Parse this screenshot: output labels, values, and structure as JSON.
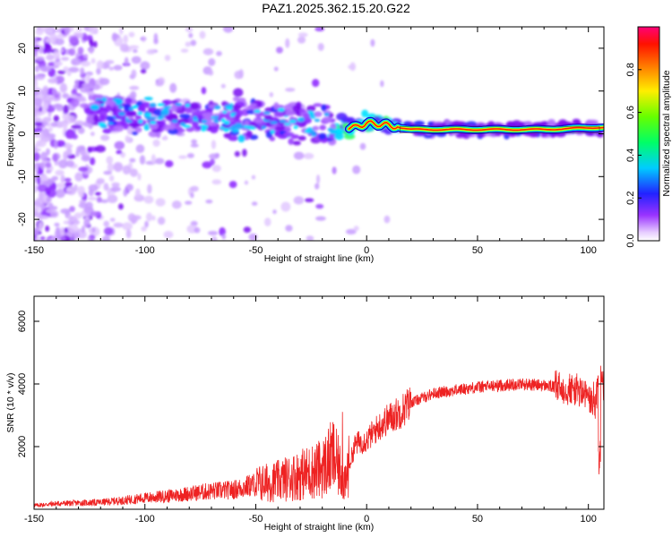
{
  "title": "PAZ1.2025.362.15.20.G22",
  "chart_data": [
    {
      "type": "heatmap",
      "name": "spectrogram",
      "xlabel": "Height of straight line (km)",
      "ylabel": "Frequency (Hz)",
      "xlim": [
        -150,
        107
      ],
      "ylim": [
        -25,
        25
      ],
      "xticks": [
        -150,
        -100,
        -50,
        0,
        50,
        100
      ],
      "yticks": [
        -20,
        -10,
        0,
        10,
        20
      ],
      "colorbar": {
        "label": "Normalized spectral amplitude",
        "range": [
          0,
          1
        ],
        "ticks": [
          0.0,
          0.2,
          0.4,
          0.6,
          0.8
        ],
        "tick_labels": [
          "0.0",
          "0.2",
          "0.4",
          "0.6",
          "0.8"
        ],
        "colors": [
          "#ffffff",
          "#d9b3ff",
          "#7f00ff",
          "#0000ff",
          "#00ffff",
          "#00ff00",
          "#ffff00",
          "#ff8000",
          "#ff0000",
          "#ff0080"
        ]
      },
      "ridge": [
        {
          "height_km": -120,
          "freq_hz": 4.5
        },
        {
          "height_km": -100,
          "freq_hz": 4.0
        },
        {
          "height_km": -80,
          "freq_hz": 4.0
        },
        {
          "height_km": -60,
          "freq_hz": 3.5
        },
        {
          "height_km": -40,
          "freq_hz": 3.0
        },
        {
          "height_km": -20,
          "freq_hz": 2.0
        },
        {
          "height_km": -5,
          "freq_hz": 1.5
        },
        {
          "height_km": 0,
          "freq_hz": 2.5
        },
        {
          "height_km": 10,
          "freq_hz": 2.0
        },
        {
          "height_km": 20,
          "freq_hz": 1.0
        },
        {
          "height_km": 50,
          "freq_hz": 1.0
        },
        {
          "height_km": 80,
          "freq_hz": 1.0
        },
        {
          "height_km": 105,
          "freq_hz": 1.5
        }
      ]
    },
    {
      "type": "line",
      "name": "snr",
      "xlabel": "Height of straight line (km)",
      "ylabel": "SNR (10 * v/v)",
      "xlim": [
        -150,
        107
      ],
      "ylim": [
        0,
        6800
      ],
      "xticks": [
        -150,
        -100,
        -50,
        0,
        50,
        100
      ],
      "yticks": [
        2000,
        4000,
        6000
      ],
      "color": "#ee2222",
      "series": [
        {
          "name": "SNR",
          "x": [
            -150,
            -140,
            -130,
            -120,
            -110,
            -100,
            -90,
            -80,
            -70,
            -60,
            -50,
            -40,
            -30,
            -20,
            -15,
            -10,
            -5,
            0,
            5,
            10,
            15,
            20,
            30,
            40,
            50,
            60,
            70,
            80,
            90,
            95,
            100,
            103,
            105,
            107
          ],
          "y": [
            120,
            180,
            200,
            220,
            280,
            360,
            420,
            500,
            580,
            620,
            800,
            900,
            1100,
            1300,
            1700,
            900,
            2100,
            2200,
            2600,
            2900,
            3100,
            3400,
            3700,
            3800,
            3900,
            3950,
            4000,
            3950,
            3850,
            3800,
            3600,
            3200,
            4400,
            4000
          ]
        }
      ]
    }
  ]
}
